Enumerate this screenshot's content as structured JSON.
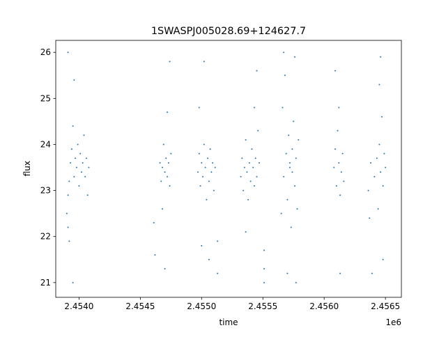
{
  "chart_data": {
    "type": "scatter",
    "title": "1SWASPJ005028.69+124627.7",
    "x_label": "time",
    "y_label": "flux",
    "x_offset_label": "1e6",
    "color": "#1f77b4",
    "x": [
      2.4539,
      2.45391,
      2.45391,
      2.45392,
      2.45393,
      2.45394,
      2.45395,
      2.45396,
      2.45397,
      2.45398,
      2.45399,
      2.454,
      2.45401,
      2.45402,
      2.45403,
      2.45404,
      2.45405,
      2.45406,
      2.45407,
      2.45408,
      2.45391,
      2.45396,
      2.45395,
      2.45392,
      2.45461,
      2.45462,
      2.45466,
      2.45467,
      2.45468,
      2.45469,
      2.4547,
      2.45471,
      2.45472,
      2.45473,
      2.45474,
      2.45475,
      2.45474,
      2.4547,
      2.45468,
      2.45472,
      2.45497,
      2.45498,
      2.45499,
      2.455,
      2.45501,
      2.45502,
      2.45503,
      2.45504,
      2.45505,
      2.45506,
      2.45507,
      2.45508,
      2.45509,
      2.4551,
      2.45511,
      2.45502,
      2.455,
      2.45506,
      2.45513,
      2.45513,
      2.45498,
      2.45532,
      2.45533,
      2.45534,
      2.45535,
      2.45536,
      2.45537,
      2.45538,
      2.45539,
      2.4554,
      2.45541,
      2.45542,
      2.45543,
      2.45544,
      2.45545,
      2.45546,
      2.45547,
      2.45545,
      2.45536,
      2.45551,
      2.45551,
      2.45551,
      2.45543,
      2.45565,
      2.45566,
      2.45567,
      2.45568,
      2.45569,
      2.4557,
      2.45571,
      2.45572,
      2.45573,
      2.45574,
      2.45575,
      2.45576,
      2.45577,
      2.45578,
      2.45579,
      2.45567,
      2.45576,
      2.4557,
      2.45577,
      2.45572,
      2.45574,
      2.45608,
      2.45609,
      2.4561,
      2.45611,
      2.45612,
      2.45613,
      2.45614,
      2.45615,
      2.45616,
      2.45609,
      2.45613,
      2.45612,
      2.45636,
      2.45637,
      2.45638,
      2.45639,
      2.45641,
      2.45643,
      2.45644,
      2.45645,
      2.45646,
      2.45647,
      2.45648,
      2.45649,
      2.4565,
      2.45646,
      2.45648,
      2.45645
    ],
    "values": [
      22.5,
      22.2,
      22.9,
      23.2,
      23.6,
      23.9,
      24.4,
      23.3,
      23.7,
      23.5,
      24.0,
      23.1,
      23.8,
      23.4,
      23.6,
      24.2,
      23.3,
      23.7,
      22.9,
      23.5,
      26.0,
      25.4,
      21.0,
      21.9,
      22.3,
      21.6,
      23.6,
      23.2,
      23.5,
      24.0,
      23.4,
      23.7,
      23.3,
      23.6,
      23.1,
      23.8,
      25.8,
      21.3,
      22.6,
      24.7,
      23.4,
      23.8,
      23.1,
      23.6,
      23.3,
      24.0,
      23.5,
      22.8,
      23.7,
      23.2,
      23.9,
      23.4,
      23.6,
      23.0,
      23.5,
      25.8,
      21.8,
      21.5,
      21.2,
      21.9,
      24.8,
      23.3,
      23.7,
      23.0,
      23.5,
      24.1,
      23.4,
      22.8,
      23.6,
      23.2,
      23.9,
      23.5,
      23.1,
      23.7,
      23.3,
      24.3,
      23.6,
      25.6,
      22.1,
      21.3,
      21.0,
      21.7,
      24.8,
      22.5,
      24.8,
      23.3,
      25.5,
      23.8,
      22.8,
      24.2,
      23.5,
      22.2,
      23.9,
      24.5,
      23.1,
      23.7,
      22.6,
      24.1,
      26.0,
      25.9,
      21.2,
      21.0,
      23.6,
      23.4,
      23.5,
      23.9,
      23.1,
      24.3,
      23.6,
      22.9,
      23.4,
      23.8,
      23.2,
      25.6,
      21.2,
      24.8,
      23.0,
      22.4,
      23.6,
      21.2,
      23.3,
      23.7,
      22.6,
      24.0,
      23.4,
      24.6,
      23.1,
      23.8,
      23.5,
      25.9,
      21.5,
      25.3
    ],
    "xlim": [
      2.45381,
      2.45663
    ],
    "xticks": [
      {
        "value": 2.454,
        "label": "2.4540"
      },
      {
        "value": 2.4545,
        "label": "2.4545"
      },
      {
        "value": 2.455,
        "label": "2.4550"
      },
      {
        "value": 2.4555,
        "label": "2.4555"
      },
      {
        "value": 2.456,
        "label": "2.4560"
      },
      {
        "value": 2.4565,
        "label": "2.4565"
      }
    ],
    "ylim": [
      20.68,
      26.26
    ],
    "yticks": [
      21,
      22,
      23,
      24,
      25,
      26
    ]
  }
}
